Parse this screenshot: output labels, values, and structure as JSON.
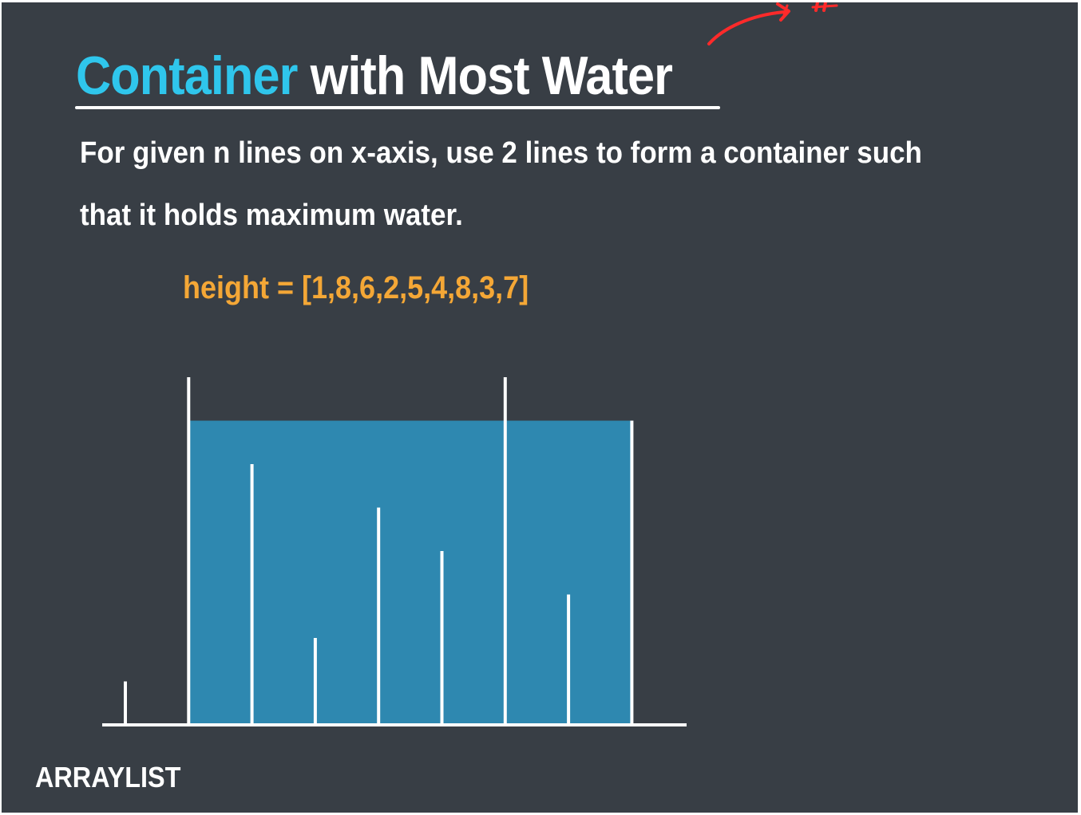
{
  "title": {
    "accent": "Container",
    "rest": " with Most Water"
  },
  "description": {
    "line1": "For given n lines on x-axis, use 2 lines to form a container such",
    "line2": "that it holds maximum water."
  },
  "height_label": "height = [1,8,6,2,5,4,8,3,7]",
  "brand": "ARRAYLIST",
  "colors": {
    "background": "#383e45",
    "title_accent": "#2fc6ec",
    "height_text": "#f4a736",
    "water": "#2e88b0",
    "lines": "#ffffff",
    "annotation": "#ff2a2a"
  },
  "chart_data": {
    "type": "bar",
    "heights": [
      1,
      8,
      6,
      2,
      5,
      4,
      8,
      3,
      7
    ],
    "container": {
      "left_index": 1,
      "right_index": 8,
      "water_level": 7
    }
  },
  "annotation_icon": "red-arrow-scribble-icon"
}
